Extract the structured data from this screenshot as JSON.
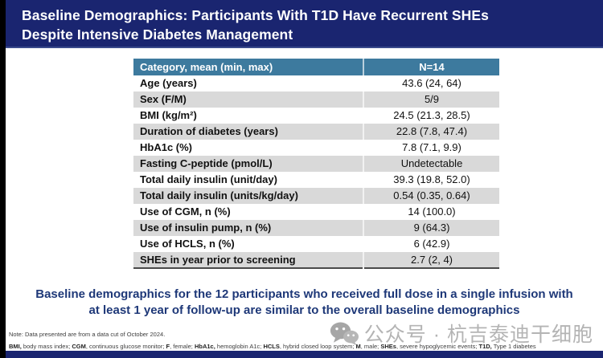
{
  "slide": {
    "title_line1": "Baseline Demographics: Participants With T1D Have Recurrent SHEs",
    "title_line2": "Despite Intensive Diabetes Management",
    "statement_line1": "Baseline demographics for the 12 participants who received full dose in a single infusion with",
    "statement_line2": "at least 1 year of follow-up are similar to the overall baseline demographics"
  },
  "table": {
    "header": {
      "category": "Category, mean (min, max)",
      "n": "N=14"
    },
    "rows": [
      {
        "label": "Age (years)",
        "value": "43.6 (24, 64)"
      },
      {
        "label": "Sex (F/M)",
        "value": "5/9"
      },
      {
        "label": "BMI (kg/m²)",
        "value": "24.5 (21.3, 28.5)"
      },
      {
        "label": "Duration of diabetes (years)",
        "value": "22.8 (7.8, 47.4)"
      },
      {
        "label": "HbA1c (%)",
        "value": "7.8 (7.1, 9.9)"
      },
      {
        "label": "Fasting C-peptide (pmol/L)",
        "value": "Undetectable"
      },
      {
        "label": "Total daily insulin (unit/day)",
        "value": "39.3 (19.8, 52.0)"
      },
      {
        "label": "Total daily insulin (units/kg/day)",
        "value": "0.54 (0.35, 0.64)"
      },
      {
        "label": "Use of CGM, n (%)",
        "value": "14 (100.0)"
      },
      {
        "label": "Use of insulin pump, n (%)",
        "value": "9 (64.3)"
      },
      {
        "label": "Use of HCLS, n (%)",
        "value": "6 (42.9)"
      },
      {
        "label": "SHEs in year prior to screening",
        "value": "2.7 (2, 4)"
      }
    ]
  },
  "footnotes": {
    "note": "Note: Data presented are from a data cut of October 2024.",
    "abbreviation_segments": [
      {
        "text": "BMI,",
        "bold": true
      },
      {
        "text": " body mass index; ",
        "bold": false
      },
      {
        "text": "CGM",
        "bold": true
      },
      {
        "text": ", continuous glucose monitor; ",
        "bold": false
      },
      {
        "text": "F",
        "bold": true
      },
      {
        "text": ", female; ",
        "bold": false
      },
      {
        "text": "HbA1c,",
        "bold": true
      },
      {
        "text": " hemoglobin A1c; ",
        "bold": false
      },
      {
        "text": "HCLS",
        "bold": true
      },
      {
        "text": ", hybrid closed loop system; ",
        "bold": false
      },
      {
        "text": "M",
        "bold": true
      },
      {
        "text": ", male; ",
        "bold": false
      },
      {
        "text": "SHEs",
        "bold": true
      },
      {
        "text": ", severe hypoglycemic events; ",
        "bold": false
      },
      {
        "text": "T1D,",
        "bold": true
      },
      {
        "text": " Type 1 diabetes",
        "bold": false
      }
    ]
  },
  "watermark": {
    "icon": "wechat-icon",
    "text": "公众号 · 杭吉泰迪干细胞"
  },
  "colors": {
    "navy": "#1a2570",
    "teal": "#3d7a9e",
    "row-gray": "#d9d9d9",
    "statement-blue": "#1e3878",
    "footnote-gray": "#3d3d3d",
    "watermark-gray": "#b4b4b4",
    "table-border": "#4a4a4a",
    "edge-black": "#000000"
  }
}
